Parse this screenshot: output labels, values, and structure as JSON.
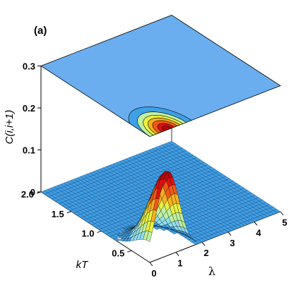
{
  "chart_data": {
    "type": "surface",
    "panel_label": "(a)",
    "zlabel": "C(i,i+1)",
    "xlabel": "λ",
    "ylabel": "kT",
    "xlim": [
      0,
      5
    ],
    "ylim": [
      0.2,
      2.0
    ],
    "zlim": [
      0,
      0.3
    ],
    "x_ticks": [
      "0",
      "1",
      "2",
      "3",
      "4",
      "5"
    ],
    "y_ticks": [
      "0.5",
      "1.0",
      "1.5",
      "2.0"
    ],
    "z_ticks": [
      "0",
      "0.1",
      "0.2",
      "0.3"
    ],
    "peak": {
      "x": 0.7,
      "y": 0.2,
      "z": 0.2
    },
    "colormap": [
      "#3ea0e6",
      "#8fe0f0",
      "#bff2a0",
      "#e8f040",
      "#f7b020",
      "#f05a14",
      "#e01010",
      "#b80808"
    ],
    "contour_levels": [
      0.02,
      0.05,
      0.08,
      0.11,
      0.14,
      0.17,
      0.19
    ],
    "top_plane_color": "#6aaef0"
  }
}
